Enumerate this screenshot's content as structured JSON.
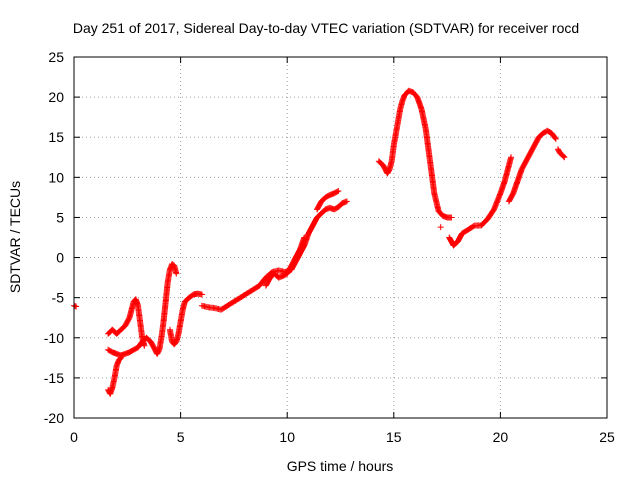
{
  "chart_data": {
    "type": "scatter",
    "title": "Day 251 of 2017, Sidereal Day-to-day VTEC variation (SDTVAR) for receiver rocd",
    "xlabel": "GPS time / hours",
    "ylabel": "SDTVAR / TECUs",
    "xlim": [
      0,
      25
    ],
    "ylim": [
      -20,
      25
    ],
    "x_ticks": [
      "0",
      "5",
      "10",
      "15",
      "20",
      "25"
    ],
    "y_ticks": [
      "-20",
      "-15",
      "-10",
      "-5",
      "0",
      "5",
      "10",
      "15",
      "20",
      "25"
    ],
    "grid": true,
    "marker": "+",
    "color": "#ff0000",
    "series": [
      {
        "segments": [
          [
            [
              0.0,
              -6.0
            ],
            [
              0.1,
              -6.1
            ]
          ],
          [
            [
              1.6,
              -16.5
            ],
            [
              1.7,
              -17.0
            ],
            [
              1.8,
              -16.2
            ],
            [
              1.9,
              -15.0
            ],
            [
              2.0,
              -13.5
            ],
            [
              2.1,
              -12.8
            ],
            [
              2.2,
              -12.5
            ]
          ],
          [
            [
              1.6,
              -11.5
            ],
            [
              1.8,
              -11.8
            ],
            [
              2.0,
              -12.0
            ],
            [
              2.2,
              -12.2
            ],
            [
              2.4,
              -12.0
            ],
            [
              2.6,
              -11.8
            ],
            [
              2.8,
              -11.5
            ],
            [
              3.0,
              -11.2
            ],
            [
              3.2,
              -10.5
            ],
            [
              3.4,
              -10.0
            ],
            [
              3.6,
              -10.5
            ],
            [
              3.8,
              -11.5
            ],
            [
              3.9,
              -12.0
            ],
            [
              4.0,
              -11.5
            ],
            [
              4.1,
              -10.0
            ],
            [
              4.2,
              -8.0
            ],
            [
              4.3,
              -5.5
            ],
            [
              4.4,
              -3.0
            ],
            [
              4.5,
              -1.5
            ],
            [
              4.6,
              -0.8
            ],
            [
              4.7,
              -1.0
            ],
            [
              4.8,
              -2.0
            ]
          ],
          [
            [
              1.6,
              -9.5
            ],
            [
              1.8,
              -9.0
            ],
            [
              2.0,
              -9.5
            ],
            [
              2.2,
              -9.0
            ],
            [
              2.4,
              -8.5
            ],
            [
              2.5,
              -8.0
            ],
            [
              2.6,
              -7.5
            ],
            [
              2.7,
              -6.5
            ],
            [
              2.8,
              -5.5
            ],
            [
              2.9,
              -5.2
            ],
            [
              3.0,
              -6.0
            ],
            [
              3.1,
              -8.0
            ],
            [
              3.2,
              -10.0
            ],
            [
              3.3,
              -11.0
            ]
          ],
          [
            [
              4.5,
              -9.0
            ],
            [
              4.6,
              -10.5
            ],
            [
              4.7,
              -10.8
            ],
            [
              4.8,
              -10.5
            ],
            [
              4.9,
              -9.5
            ],
            [
              5.0,
              -8.0
            ],
            [
              5.1,
              -6.5
            ],
            [
              5.2,
              -5.5
            ],
            [
              5.4,
              -5.0
            ],
            [
              5.6,
              -4.6
            ],
            [
              5.8,
              -4.5
            ],
            [
              6.0,
              -4.6
            ]
          ],
          [
            [
              6.0,
              -6.0
            ],
            [
              6.3,
              -6.2
            ],
            [
              6.6,
              -6.3
            ],
            [
              6.9,
              -6.5
            ],
            [
              7.2,
              -6.0
            ],
            [
              7.5,
              -5.5
            ],
            [
              7.8,
              -5.0
            ],
            [
              8.1,
              -4.5
            ],
            [
              8.4,
              -4.0
            ],
            [
              8.7,
              -3.5
            ],
            [
              9.0,
              -2.5
            ],
            [
              9.3,
              -1.8
            ],
            [
              9.6,
              -1.6
            ],
            [
              9.9,
              -1.8
            ],
            [
              10.2,
              -1.5
            ],
            [
              10.4,
              -0.5
            ],
            [
              10.6,
              0.5
            ],
            [
              10.8,
              1.5
            ],
            [
              11.0,
              3.0
            ],
            [
              11.2,
              4.0
            ],
            [
              11.4,
              5.0
            ],
            [
              11.6,
              5.5
            ],
            [
              11.8,
              6.0
            ],
            [
              12.0,
              6.2
            ],
            [
              12.2,
              6.0
            ],
            [
              12.4,
              6.3
            ],
            [
              12.6,
              6.8
            ],
            [
              12.8,
              7.0
            ]
          ],
          [
            [
              11.4,
              6.0
            ],
            [
              11.6,
              7.0
            ],
            [
              11.8,
              7.5
            ],
            [
              12.0,
              7.8
            ],
            [
              12.2,
              8.0
            ],
            [
              12.4,
              8.3
            ]
          ],
          [
            [
              9.0,
              -3.5
            ],
            [
              9.2,
              -2.5
            ],
            [
              9.4,
              -2.0
            ],
            [
              9.6,
              -2.5
            ],
            [
              9.8,
              -2.3
            ],
            [
              10.0,
              -2.0
            ],
            [
              10.2,
              -1.0
            ],
            [
              10.4,
              0.0
            ],
            [
              10.6,
              1.0
            ],
            [
              10.8,
              2.5
            ]
          ],
          [
            [
              14.3,
              12.0
            ],
            [
              14.5,
              11.5
            ],
            [
              14.6,
              11.0
            ],
            [
              14.7,
              10.5
            ],
            [
              14.8,
              11.0
            ],
            [
              14.9,
              12.0
            ],
            [
              15.0,
              14.0
            ],
            [
              15.1,
              15.5
            ],
            [
              15.2,
              17.0
            ],
            [
              15.3,
              18.5
            ],
            [
              15.4,
              19.5
            ],
            [
              15.5,
              20.2
            ],
            [
              15.7,
              20.8
            ],
            [
              15.9,
              20.6
            ],
            [
              16.1,
              20.0
            ],
            [
              16.3,
              18.5
            ],
            [
              16.5,
              16.0
            ],
            [
              16.7,
              12.0
            ],
            [
              16.9,
              8.0
            ],
            [
              17.1,
              5.8
            ],
            [
              17.3,
              5.2
            ],
            [
              17.5,
              5.0
            ],
            [
              17.7,
              5.0
            ]
          ],
          [
            [
              17.6,
              2.5
            ],
            [
              17.8,
              1.5
            ],
            [
              18.0,
              2.0
            ],
            [
              18.2,
              3.0
            ],
            [
              18.5,
              3.5
            ],
            [
              18.8,
              4.0
            ],
            [
              19.1,
              4.0
            ],
            [
              19.4,
              4.8
            ],
            [
              19.7,
              6.0
            ],
            [
              20.0,
              8.0
            ],
            [
              20.2,
              9.5
            ],
            [
              20.4,
              11.5
            ],
            [
              20.5,
              12.5
            ]
          ],
          [
            [
              17.2,
              3.8
            ]
          ],
          [
            [
              20.4,
              7.0
            ],
            [
              20.6,
              8.0
            ],
            [
              20.8,
              9.5
            ],
            [
              21.0,
              11.0
            ],
            [
              21.2,
              12.0
            ],
            [
              21.4,
              13.0
            ],
            [
              21.6,
              14.0
            ],
            [
              21.8,
              15.0
            ],
            [
              22.0,
              15.5
            ],
            [
              22.2,
              15.8
            ],
            [
              22.4,
              15.5
            ],
            [
              22.6,
              14.8
            ]
          ],
          [
            [
              22.7,
              13.5
            ],
            [
              22.8,
              13.0
            ],
            [
              22.9,
              12.8
            ],
            [
              23.0,
              12.5
            ]
          ]
        ]
      }
    ]
  }
}
